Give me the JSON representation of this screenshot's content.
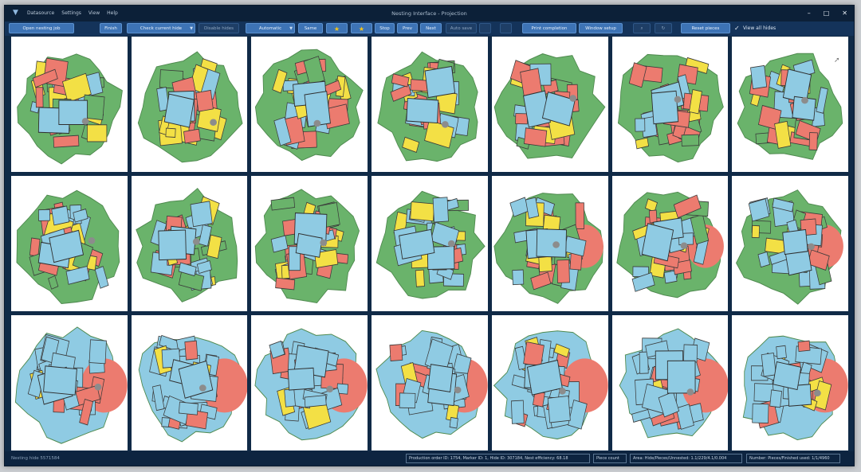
{
  "window": {
    "title": "Nesting Interface - Projection",
    "app_icon": "hide-logo-icon",
    "menu": [
      "Datasource",
      "Settings",
      "View",
      "Help"
    ],
    "controls": {
      "minimize": "–",
      "maximize": "□",
      "close": "✕"
    }
  },
  "toolbar": {
    "open_nesting_job": "Open nesting job",
    "finish": "Finish",
    "check_current_hide": "Check current hide",
    "disable_hides": "Disable hides",
    "automatic": "Automatic",
    "same": "Same",
    "star1": "★",
    "star2": "★",
    "stop": "Stop",
    "prev": "Prev",
    "next": "Next",
    "auto_save": "Auto save",
    "print_completion": "Print completion",
    "window_setup": "Window setup",
    "flip_hide": "Flip hide",
    "reset_pieces": "Reset pieces",
    "view_all_hides": "View all hides",
    "view_all_checked": true
  },
  "grid": {
    "rows": 3,
    "cols": 7
  },
  "piece_colors": {
    "blue": "#8fcbe3",
    "red": "#ec7b6f",
    "yellow": "#f3e045",
    "green": "#6ab36b",
    "gray": "#8c8c8c"
  },
  "status": {
    "left": "Nesting hide 5571584",
    "order_info": "Production order ID: 1754, Marker ID: 1, Hide ID: 307184, Nest efficiency: 68.18",
    "piece_count": "Piece count",
    "area_info": "Area: Hide/Pieces/Unnested: 1.1/229/4.1/0.004",
    "hides_info": "Number: Pieces/Finished used: 1/1/4960"
  }
}
